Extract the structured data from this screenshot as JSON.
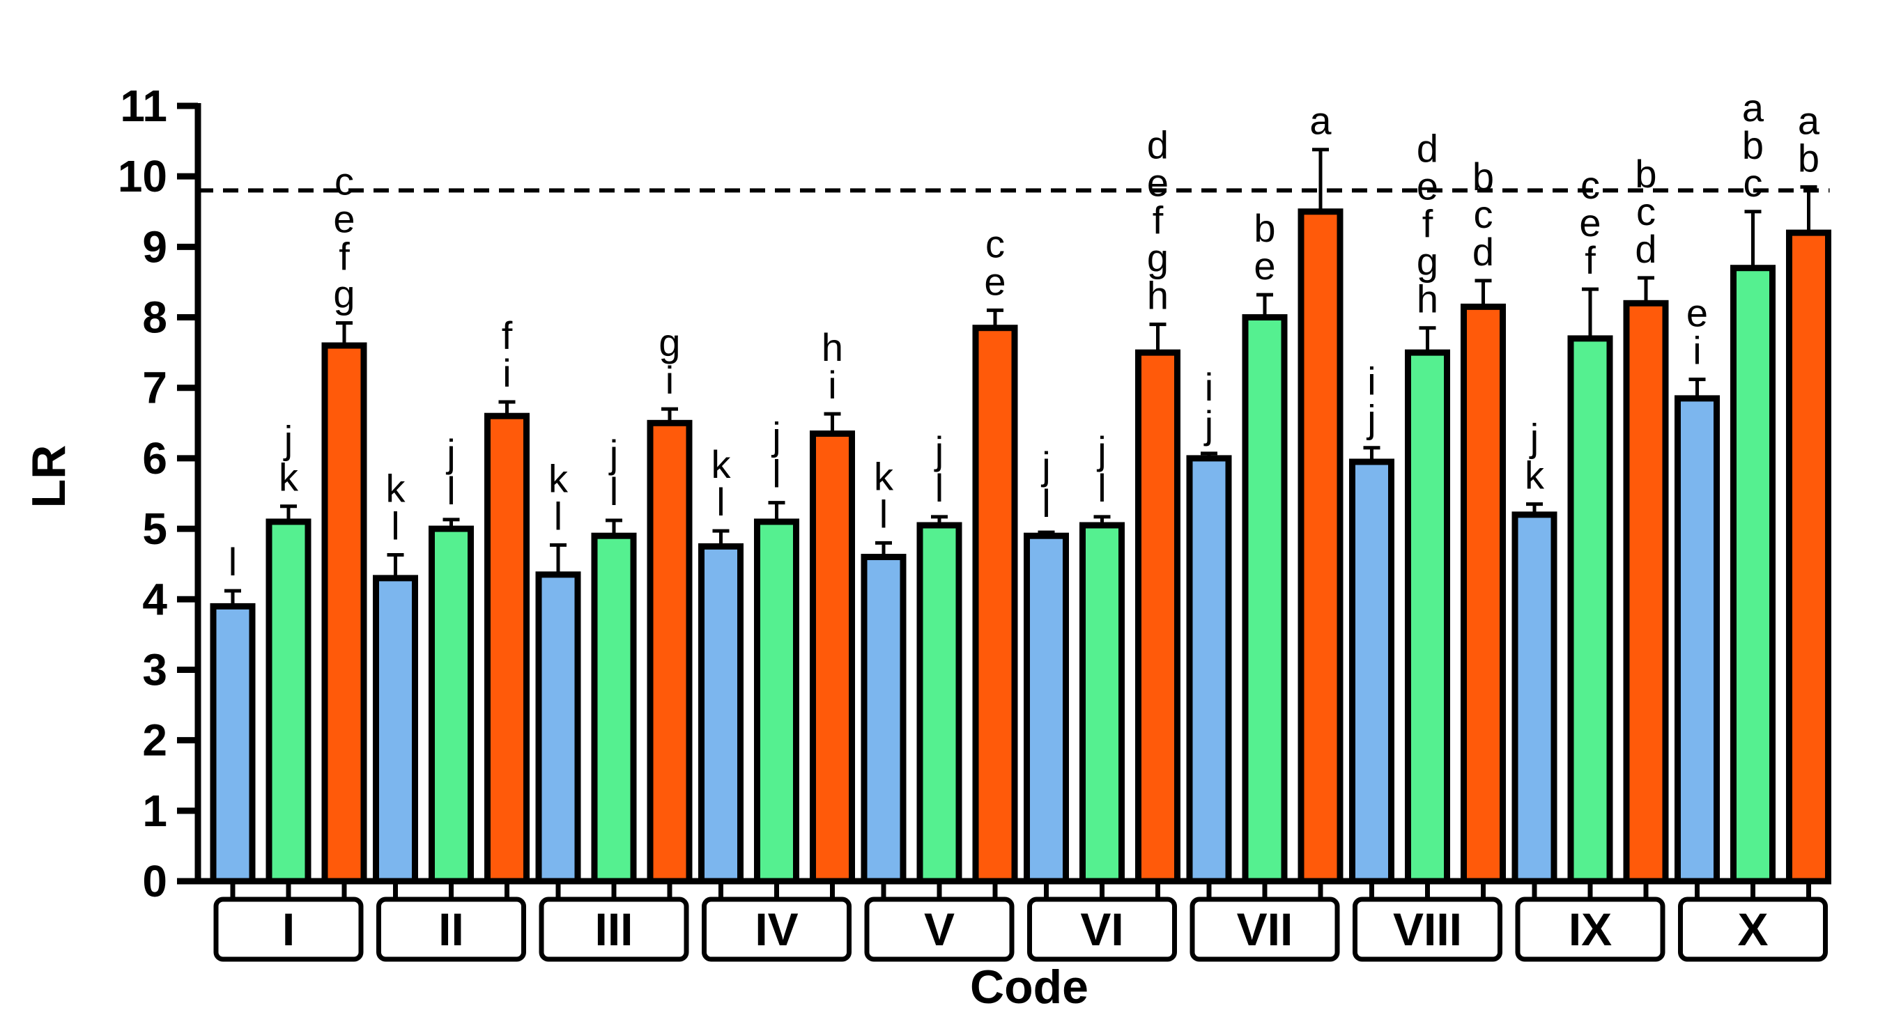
{
  "chart_data": {
    "type": "bar",
    "title": "",
    "xlabel": "Code",
    "ylabel": "LR",
    "ylim": [
      0,
      11
    ],
    "yticks": [
      "0",
      "1",
      "2",
      "3",
      "4",
      "5",
      "6",
      "7",
      "8",
      "9",
      "10",
      "11"
    ],
    "reference_line": 9.8,
    "series_colors": [
      "#7cb6ee",
      "#55f090",
      "#ff5a0a"
    ],
    "categories": [
      "I",
      "II",
      "III",
      "IV",
      "V",
      "VI",
      "VII",
      "VIII",
      "IX",
      "X"
    ],
    "groups": [
      {
        "code": "I",
        "bars": [
          {
            "value": 3.9,
            "error": 0.22,
            "letters": [
              "l"
            ]
          },
          {
            "value": 5.1,
            "error": 0.22,
            "letters": [
              "j",
              "k"
            ]
          },
          {
            "value": 7.6,
            "error": 0.32,
            "letters": [
              "c",
              "e",
              "f",
              "g"
            ]
          }
        ]
      },
      {
        "code": "II",
        "bars": [
          {
            "value": 4.3,
            "error": 0.33,
            "letters": [
              "k",
              "l"
            ]
          },
          {
            "value": 5.0,
            "error": 0.13,
            "letters": [
              "j",
              "l"
            ]
          },
          {
            "value": 6.6,
            "error": 0.2,
            "letters": [
              "f",
              "i"
            ]
          }
        ]
      },
      {
        "code": "III",
        "bars": [
          {
            "value": 4.35,
            "error": 0.42,
            "letters": [
              "k",
              "l"
            ]
          },
          {
            "value": 4.9,
            "error": 0.22,
            "letters": [
              "j",
              "l"
            ]
          },
          {
            "value": 6.5,
            "error": 0.2,
            "letters": [
              "g",
              "i"
            ]
          }
        ]
      },
      {
        "code": "IV",
        "bars": [
          {
            "value": 4.75,
            "error": 0.22,
            "letters": [
              "k",
              "l"
            ]
          },
          {
            "value": 5.1,
            "error": 0.27,
            "letters": [
              "j",
              "l"
            ]
          },
          {
            "value": 6.35,
            "error": 0.28,
            "letters": [
              "h",
              "i"
            ]
          }
        ]
      },
      {
        "code": "V",
        "bars": [
          {
            "value": 4.6,
            "error": 0.2,
            "letters": [
              "k",
              "l"
            ]
          },
          {
            "value": 5.05,
            "error": 0.12,
            "letters": [
              "j",
              "l"
            ]
          },
          {
            "value": 7.85,
            "error": 0.25,
            "letters": [
              "c",
              "e"
            ]
          }
        ]
      },
      {
        "code": "VI",
        "bars": [
          {
            "value": 4.9,
            "error": 0.05,
            "letters": [
              "j",
              "l"
            ]
          },
          {
            "value": 5.05,
            "error": 0.12,
            "letters": [
              "j",
              "l"
            ]
          },
          {
            "value": 7.5,
            "error": 0.4,
            "letters": [
              "d",
              "e",
              "f",
              "g",
              "h"
            ]
          }
        ]
      },
      {
        "code": "VII",
        "bars": [
          {
            "value": 6.0,
            "error": 0.07,
            "letters": [
              "i",
              "j"
            ]
          },
          {
            "value": 8.0,
            "error": 0.32,
            "letters": [
              "b",
              "e"
            ]
          },
          {
            "value": 9.5,
            "error": 0.88,
            "letters": [
              "a"
            ]
          }
        ]
      },
      {
        "code": "VIII",
        "bars": [
          {
            "value": 5.95,
            "error": 0.2,
            "letters": [
              "i",
              "j"
            ]
          },
          {
            "value": 7.5,
            "error": 0.35,
            "letters": [
              "d",
              "e",
              "f",
              "g",
              "h"
            ]
          },
          {
            "value": 8.15,
            "error": 0.37,
            "letters": [
              "b",
              "c",
              "d"
            ]
          }
        ]
      },
      {
        "code": "IX",
        "bars": [
          {
            "value": 5.2,
            "error": 0.15,
            "letters": [
              "j",
              "k"
            ]
          },
          {
            "value": 7.7,
            "error": 0.7,
            "letters": [
              "c",
              "e",
              "f"
            ]
          },
          {
            "value": 8.2,
            "error": 0.36,
            "letters": [
              "b",
              "c",
              "d"
            ]
          }
        ]
      },
      {
        "code": "X",
        "bars": [
          {
            "value": 6.85,
            "error": 0.27,
            "letters": [
              "e",
              "i"
            ]
          },
          {
            "value": 8.7,
            "error": 0.8,
            "letters": [
              "a",
              "b",
              "c"
            ]
          },
          {
            "value": 9.2,
            "error": 0.65,
            "letters": [
              "a",
              "b"
            ]
          }
        ]
      }
    ]
  }
}
